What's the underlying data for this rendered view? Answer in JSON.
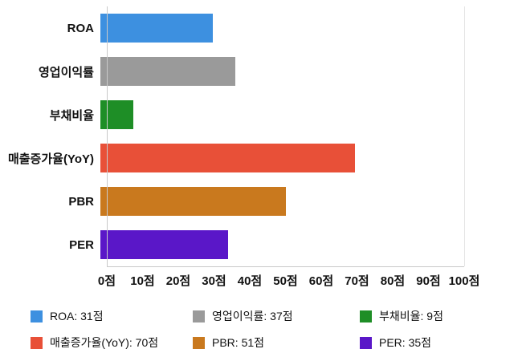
{
  "chart_data": {
    "type": "bar",
    "orientation": "horizontal",
    "title": "",
    "xlabel": "",
    "ylabel": "",
    "unit": "점",
    "xlim": [
      0,
      100
    ],
    "grid": false,
    "legend_position": "bottom",
    "categories": [
      "ROA",
      "영업이익률",
      "부채비율",
      "매출증가율(YoY)",
      "PBR",
      "PER"
    ],
    "values": [
      31,
      37,
      9,
      70,
      51,
      35
    ],
    "colors": [
      "#3d90e0",
      "#9a9a9a",
      "#1e8e26",
      "#e85038",
      "#c9791e",
      "#5a17c8"
    ],
    "x_ticks": [
      {
        "value": 0,
        "label": "0점"
      },
      {
        "value": 10,
        "label": "10점"
      },
      {
        "value": 20,
        "label": "20점"
      },
      {
        "value": 30,
        "label": "30점"
      },
      {
        "value": 40,
        "label": "40점"
      },
      {
        "value": 50,
        "label": "50점"
      },
      {
        "value": 60,
        "label": "60점"
      },
      {
        "value": 70,
        "label": "70점"
      },
      {
        "value": 80,
        "label": "80점"
      },
      {
        "value": 90,
        "label": "90점"
      },
      {
        "value": 100,
        "label": "100점"
      }
    ],
    "legend": [
      {
        "label": "ROA: 31점",
        "color": "#3d90e0"
      },
      {
        "label": "영업이익률: 37점",
        "color": "#9a9a9a"
      },
      {
        "label": "부채비율: 9점",
        "color": "#1e8e26"
      },
      {
        "label": "매출증가율(YoY): 70점",
        "color": "#e85038"
      },
      {
        "label": "PBR: 51점",
        "color": "#c9791e"
      },
      {
        "label": "PER: 35점",
        "color": "#5a17c8"
      }
    ]
  }
}
